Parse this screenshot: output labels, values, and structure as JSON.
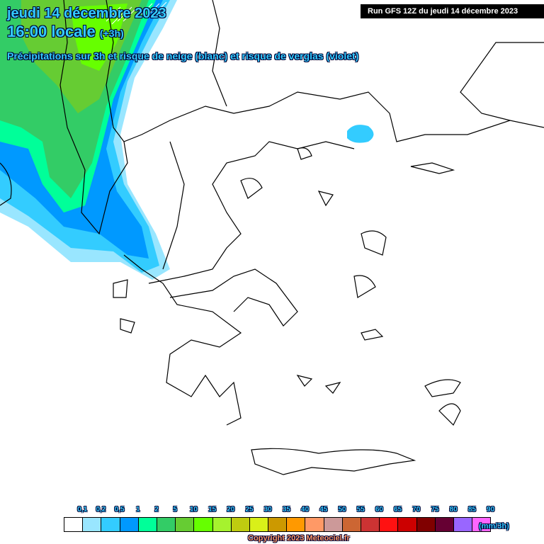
{
  "header": {
    "date": "jeudi 14 décembre 2023",
    "time": "16:00 locale",
    "offset": "(+3h)",
    "subtitle": "Précipitations sur 3h et risque de neige (blanc) et risque de verglas (violet)",
    "run": "Run GFS 12Z du jeudi 14 décembre 2023"
  },
  "legend": {
    "unit": "(mm/3h)",
    "labels": [
      "0,1",
      "0,2",
      "0,5",
      "1",
      "2",
      "5",
      "10",
      "15",
      "20",
      "25",
      "30",
      "35",
      "40",
      "45",
      "50",
      "55",
      "60",
      "65",
      "70",
      "75",
      "80",
      "85",
      "90"
    ],
    "colors": [
      "#ffffff",
      "#99e6ff",
      "#33ccff",
      "#0099ff",
      "#00ff99",
      "#33cc66",
      "#66cc33",
      "#66ff00",
      "#a6f22e",
      "#bfcc10",
      "#d9f019",
      "#cc9900",
      "#ff9900",
      "#ff9966",
      "#cc9999",
      "#cc6633",
      "#cc3333",
      "#ff1111",
      "#cc0000",
      "#800000",
      "#660033",
      "#9966ff",
      "#ff66ff"
    ]
  },
  "copyright": "Copyright 2023 Meteociel.fr"
}
